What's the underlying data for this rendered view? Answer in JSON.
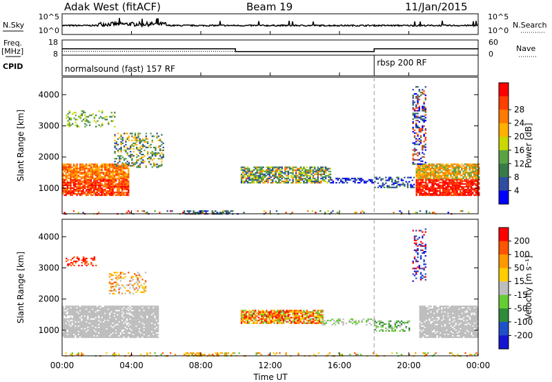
{
  "header": {
    "station": "Adak West (fitACF)",
    "beam": "Beam 19",
    "date": "11/Jan/2015"
  },
  "labels": {
    "nsky": "N.Sky",
    "nsearch": "N.Search",
    "freq": "Freq.",
    "mhz": "[MHz]",
    "nave": "Nave",
    "cpid": "CPID",
    "cpid_1": "normalsound (fast) 157 RF",
    "cpid_2": "rbsp 200 RF",
    "time_axis": "Time UT"
  },
  "colors": {
    "power_scale": [
      "#0000ff",
      "#2f4ea0",
      "#3a7a46",
      "#5aa244",
      "#c9d800",
      "#ffb000",
      "#ff7a00",
      "#ff4000",
      "#ff0000"
    ],
    "velocity_scale": [
      "#1414d2",
      "#2050c8",
      "#2f8a3a",
      "#66cc33",
      "#bdbdbd",
      "#ffcc00",
      "#ff9900",
      "#ff5500",
      "#ff0000"
    ],
    "ground_scatter": "#bdbdbd"
  },
  "chart_data": [
    {
      "type": "line",
      "name": "noise_panel",
      "x_ticks": [
        "00:00",
        "04:00",
        "08:00",
        "12:00",
        "16:00",
        "20:00",
        "00:00"
      ],
      "left_ticks": [
        "10^5",
        "10^0"
      ],
      "right_ticks": [
        "10^5",
        "10^0"
      ],
      "xlim_hours": [
        0,
        24
      ]
    },
    {
      "type": "line",
      "name": "frequency_panel",
      "left_ticks": [
        "18",
        "8"
      ],
      "right_ticks": [
        "60",
        "0"
      ],
      "freq_steps": [
        {
          "start": 0,
          "end": 10.0,
          "mhz": 12.2
        },
        {
          "start": 10.0,
          "end": 18.0,
          "mhz": 10.4
        },
        {
          "start": 18.0,
          "end": 24,
          "mhz": 12.2
        }
      ],
      "cpid_change_hour": 18.0
    },
    {
      "type": "heatmap",
      "name": "power",
      "ylabel": "Slant Range [km]",
      "ylim": [
        180,
        4560
      ],
      "y_ticks": [
        "1000",
        "2000",
        "3000",
        "4000"
      ],
      "x_ticks": [
        "00:00",
        "04:00",
        "08:00",
        "12:00",
        "16:00",
        "20:00",
        "00:00"
      ],
      "colorbar_title": "Power [dB]",
      "colorbar_ticks": [
        "4",
        "8",
        "12",
        "16",
        "20",
        "24",
        "28"
      ]
    },
    {
      "type": "heatmap",
      "name": "velocity",
      "ylabel": "Slant Range [km]",
      "ylim": [
        180,
        4560
      ],
      "y_ticks": [
        "1000",
        "2000",
        "3000",
        "4000"
      ],
      "x_ticks": [
        "00:00",
        "04:00",
        "08:00",
        "12:00",
        "16:00",
        "20:00",
        "00:00"
      ],
      "xlabel": "Time UT",
      "colorbar_title": "Velocity [m s⁻¹]",
      "colorbar_ticks": [
        "200",
        "100",
        "50",
        "15",
        "-15",
        "-50",
        "-100",
        "-200"
      ]
    }
  ]
}
